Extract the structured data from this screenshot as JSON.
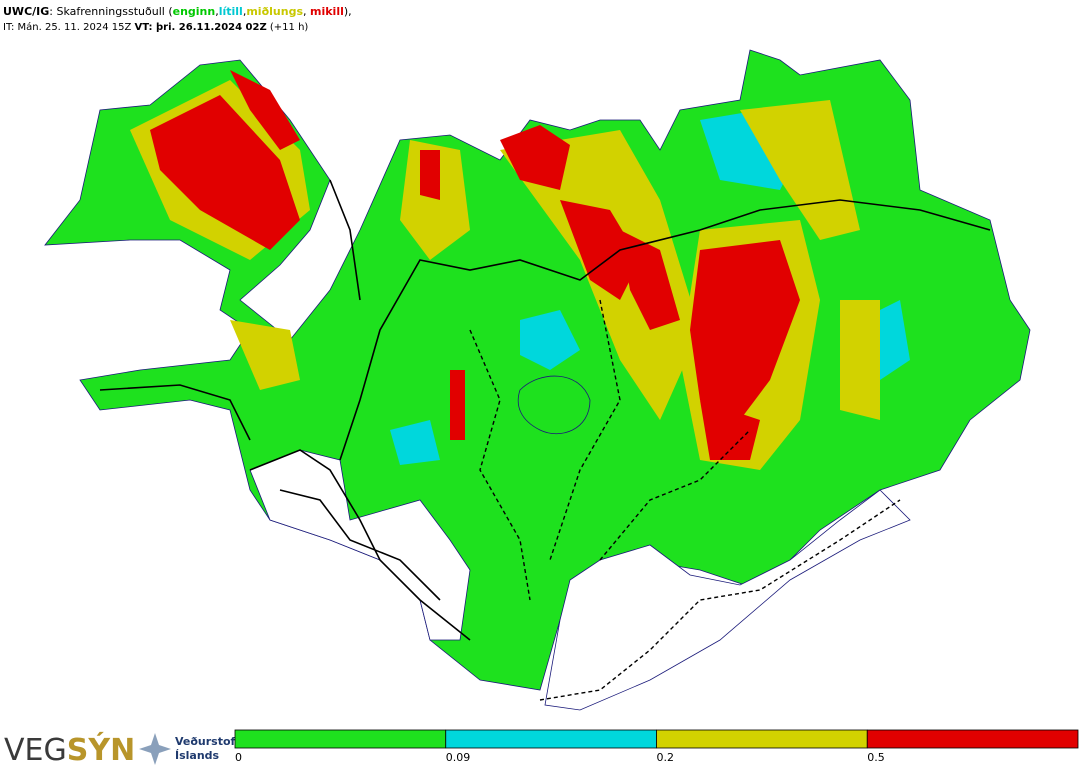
{
  "header": {
    "line1": [
      {
        "text": "UWC/IG",
        "bold": true,
        "color": "#000000"
      },
      {
        "text": ": Skafrenningsstuðull (",
        "bold": false,
        "color": "#000000"
      },
      {
        "text": "enginn",
        "bold": true,
        "color": "#00c800"
      },
      {
        "text": ",",
        "bold": false,
        "color": "#000000"
      },
      {
        "text": "lítill",
        "bold": true,
        "color": "#00c8d2"
      },
      {
        "text": ",",
        "bold": false,
        "color": "#000000"
      },
      {
        "text": "miðlungs",
        "bold": true,
        "color": "#c8c800"
      },
      {
        "text": ", ",
        "bold": false,
        "color": "#000000"
      },
      {
        "text": "mikill",
        "bold": true,
        "color": "#e00000"
      },
      {
        "text": "),",
        "bold": false,
        "color": "#000000"
      }
    ],
    "line2": [
      {
        "text": "IT: Mán. 25. 11. 2024 15Z ",
        "bold": false
      },
      {
        "text": "VT: þri. 26.11.2024 02Z",
        "bold": true
      },
      {
        "text": " (+11 h)",
        "bold": false
      }
    ]
  },
  "legend": {
    "ticks": [
      0,
      0.09,
      0.2,
      0.5
    ],
    "colors": [
      "#1ee11e",
      "#00d7dc",
      "#d2d200",
      "#e10000"
    ]
  },
  "logo": {
    "left": "VEG",
    "right": "SÝN",
    "org_line1": "Veðurstofa",
    "org_line2": "Íslands"
  }
}
